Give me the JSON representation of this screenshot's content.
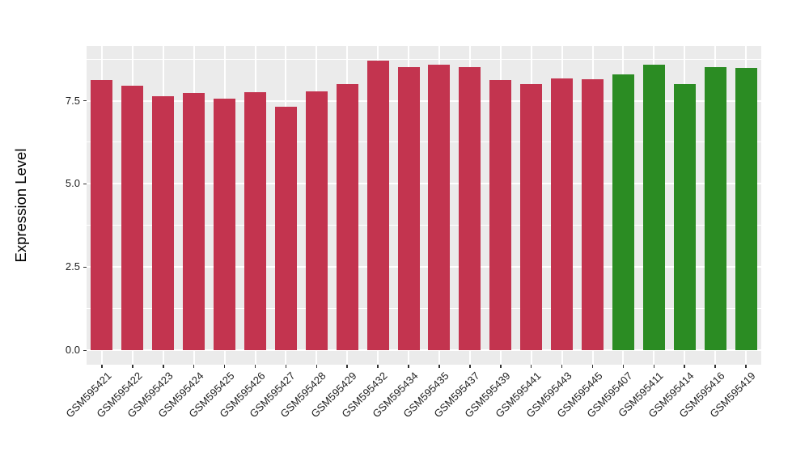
{
  "chart_data": {
    "type": "bar",
    "title": "",
    "xlabel": "",
    "ylabel": "Expression Level",
    "ylim": [
      -0.43,
      9.14
    ],
    "grid": true,
    "legend_position": "none",
    "yticks": [
      {
        "value": 0.0,
        "label": "0.0"
      },
      {
        "value": 2.5,
        "label": "2.5"
      },
      {
        "value": 5.0,
        "label": "5.0"
      },
      {
        "value": 7.5,
        "label": "7.5"
      }
    ],
    "minor_gridlines": [
      1.25,
      3.75,
      6.25,
      8.75
    ],
    "group_colors": {
      "group1": "#C3344F",
      "group2": "#2B8C23"
    },
    "bars": [
      {
        "label": "GSM595421",
        "value": 8.11,
        "group": "group1"
      },
      {
        "label": "GSM595422",
        "value": 7.94,
        "group": "group1"
      },
      {
        "label": "GSM595423",
        "value": 7.64,
        "group": "group1"
      },
      {
        "label": "GSM595424",
        "value": 7.72,
        "group": "group1"
      },
      {
        "label": "GSM595425",
        "value": 7.56,
        "group": "group1"
      },
      {
        "label": "GSM595426",
        "value": 7.75,
        "group": "group1"
      },
      {
        "label": "GSM595427",
        "value": 7.31,
        "group": "group1"
      },
      {
        "label": "GSM595428",
        "value": 7.79,
        "group": "group1"
      },
      {
        "label": "GSM595429",
        "value": 8.01,
        "group": "group1"
      },
      {
        "label": "GSM595432",
        "value": 8.7,
        "group": "group1"
      },
      {
        "label": "GSM595434",
        "value": 8.51,
        "group": "group1"
      },
      {
        "label": "GSM595435",
        "value": 8.57,
        "group": "group1"
      },
      {
        "label": "GSM595437",
        "value": 8.52,
        "group": "group1"
      },
      {
        "label": "GSM595439",
        "value": 8.11,
        "group": "group1"
      },
      {
        "label": "GSM595441",
        "value": 8.01,
        "group": "group1"
      },
      {
        "label": "GSM595443",
        "value": 8.18,
        "group": "group1"
      },
      {
        "label": "GSM595445",
        "value": 8.15,
        "group": "group1"
      },
      {
        "label": "GSM595407",
        "value": 8.29,
        "group": "group2"
      },
      {
        "label": "GSM595411",
        "value": 8.58,
        "group": "group2"
      },
      {
        "label": "GSM595414",
        "value": 7.99,
        "group": "group2"
      },
      {
        "label": "GSM595416",
        "value": 8.51,
        "group": "group2"
      },
      {
        "label": "GSM595419",
        "value": 8.48,
        "group": "group2"
      }
    ]
  },
  "style": {
    "background": "#FFFFFF",
    "panel_bg": "#EBEBEB",
    "grid_color": "#FFFFFF",
    "tick_color": "#333333",
    "tick_label_color": "#1F1F1F",
    "axis_title_color": "#000000"
  }
}
